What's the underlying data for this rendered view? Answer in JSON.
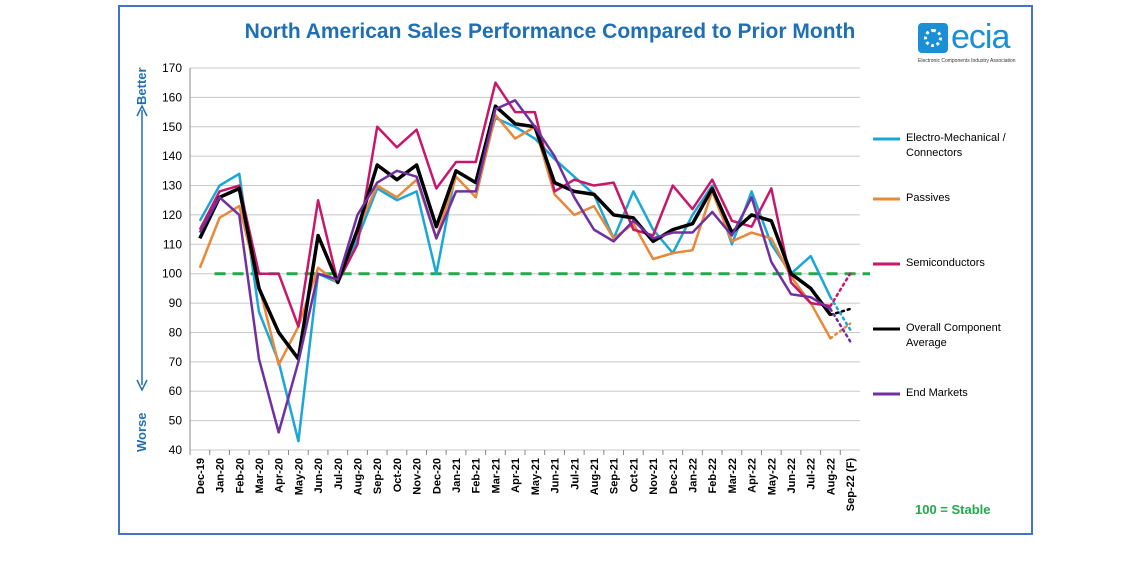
{
  "chart_data": {
    "type": "line",
    "title": "North American Sales Performance Compared to Prior Month",
    "ylim": [
      40,
      170
    ],
    "yticks": [
      40,
      50,
      60,
      70,
      80,
      90,
      100,
      110,
      120,
      130,
      140,
      150,
      160,
      170
    ],
    "grid": true,
    "legend_placement": "right",
    "categories": [
      "Dec-19",
      "Jan-20",
      "Feb-20",
      "Mar-20",
      "Apr-20",
      "May-20",
      "Jun-20",
      "Jul-20",
      "Aug-20",
      "Sep-20",
      "Oct-20",
      "Nov-20",
      "Dec-20",
      "Jan-21",
      "Feb-21",
      "Mar-21",
      "Apr-21",
      "May-21",
      "Jun-21",
      "Jul-21",
      "Aug-21",
      "Sep-21",
      "Oct-21",
      "Nov-21",
      "Dec-21",
      "Jan-22",
      "Feb-22",
      "Mar-22",
      "Apr-22",
      "May-22",
      "Jun-22",
      "Jul-22",
      "Aug-22",
      "Sep-22 (F)"
    ],
    "forecast_category": "Sep-22 (F)",
    "reference_line": {
      "value": 100,
      "label": "100 = Stable",
      "color": "#22a94b",
      "style": "dashed"
    },
    "series": [
      {
        "name": "Electro-Mechanical / Connectors",
        "color": "#1aa7d8",
        "values": [
          118,
          130,
          134,
          87,
          70,
          43,
          100,
          97,
          112,
          129,
          125,
          128,
          100,
          135,
          131,
          153,
          150,
          146,
          139,
          133,
          127,
          112,
          128,
          115,
          107,
          120,
          130,
          110,
          128,
          110,
          100,
          106,
          92,
          81
        ]
      },
      {
        "name": "Passives",
        "color": "#e8883a",
        "values": [
          102,
          119,
          123,
          96,
          69,
          82,
          102,
          97,
          115,
          130,
          126,
          132,
          112,
          133,
          126,
          154,
          146,
          150,
          127,
          120,
          123,
          112,
          117,
          105,
          107,
          108,
          128,
          111,
          114,
          112,
          99,
          90,
          78,
          83
        ]
      },
      {
        "name": "Semiconductors",
        "color": "#c8176a",
        "values": [
          115,
          128,
          130,
          100,
          100,
          82,
          125,
          97,
          110,
          150,
          143,
          149,
          129,
          138,
          138,
          165,
          155,
          155,
          128,
          132,
          130,
          131,
          115,
          113,
          130,
          122,
          132,
          118,
          116,
          129,
          97,
          90,
          89,
          100
        ]
      },
      {
        "name": "Overall Component Average",
        "color": "#000000",
        "values": [
          112,
          126,
          129,
          95,
          80,
          71,
          113,
          97,
          115,
          137,
          132,
          137,
          116,
          135,
          131,
          157,
          151,
          150,
          131,
          128,
          127,
          120,
          119,
          111,
          115,
          117,
          129,
          114,
          120,
          118,
          100,
          95,
          86,
          88
        ]
      },
      {
        "name": "End Markets",
        "color": "#7030a0",
        "values": [
          114,
          126,
          120,
          71,
          46,
          70,
          100,
          98,
          120,
          131,
          135,
          133,
          112,
          128,
          128,
          156,
          159,
          150,
          140,
          126,
          115,
          111,
          118,
          112,
          114,
          114,
          121,
          113,
          126,
          104,
          93,
          92,
          88,
          77
        ]
      }
    ],
    "side_labels": {
      "top": "Better",
      "bottom": "Worse"
    }
  },
  "logo": {
    "word": "ecia",
    "sub": "Electronic Components Industry Association"
  }
}
